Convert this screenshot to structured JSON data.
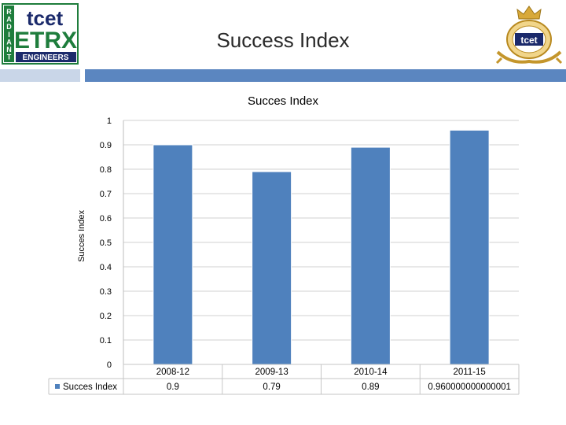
{
  "slide": {
    "title": "Success Index"
  },
  "logos": {
    "left": {
      "side_letters": [
        "R",
        "A",
        "D",
        "I",
        "A",
        "N",
        "T"
      ],
      "top": "tcet",
      "main": "ETRX",
      "bottom": "ENGINEERS"
    },
    "right": {
      "text": "tcet"
    }
  },
  "colors": {
    "bar": "#4f81bd",
    "band_light": "#c9d6e8",
    "band_dark": "#5b86c0",
    "logo_green": "#1e7d3c",
    "logo_navy": "#1b2a6b"
  },
  "chart_data": {
    "type": "bar",
    "title": "Succes Index",
    "ylabel": "Succes Index",
    "xlabel": "",
    "categories": [
      "2008-12",
      "2009-13",
      "2010-14",
      "2011-15"
    ],
    "series": [
      {
        "name": "Succes Index",
        "values": [
          0.9,
          0.79,
          0.89,
          0.96
        ]
      }
    ],
    "table_values": [
      "0.9",
      "0.79",
      "0.89",
      "0.960000000000001"
    ],
    "ylim": [
      0,
      1
    ],
    "yticks": [
      "0",
      "0.1",
      "0.2",
      "0.3",
      "0.4",
      "0.5",
      "0.6",
      "0.7",
      "0.8",
      "0.9",
      "1"
    ],
    "grid": true,
    "legend": "data-table",
    "has_data_table": true
  }
}
